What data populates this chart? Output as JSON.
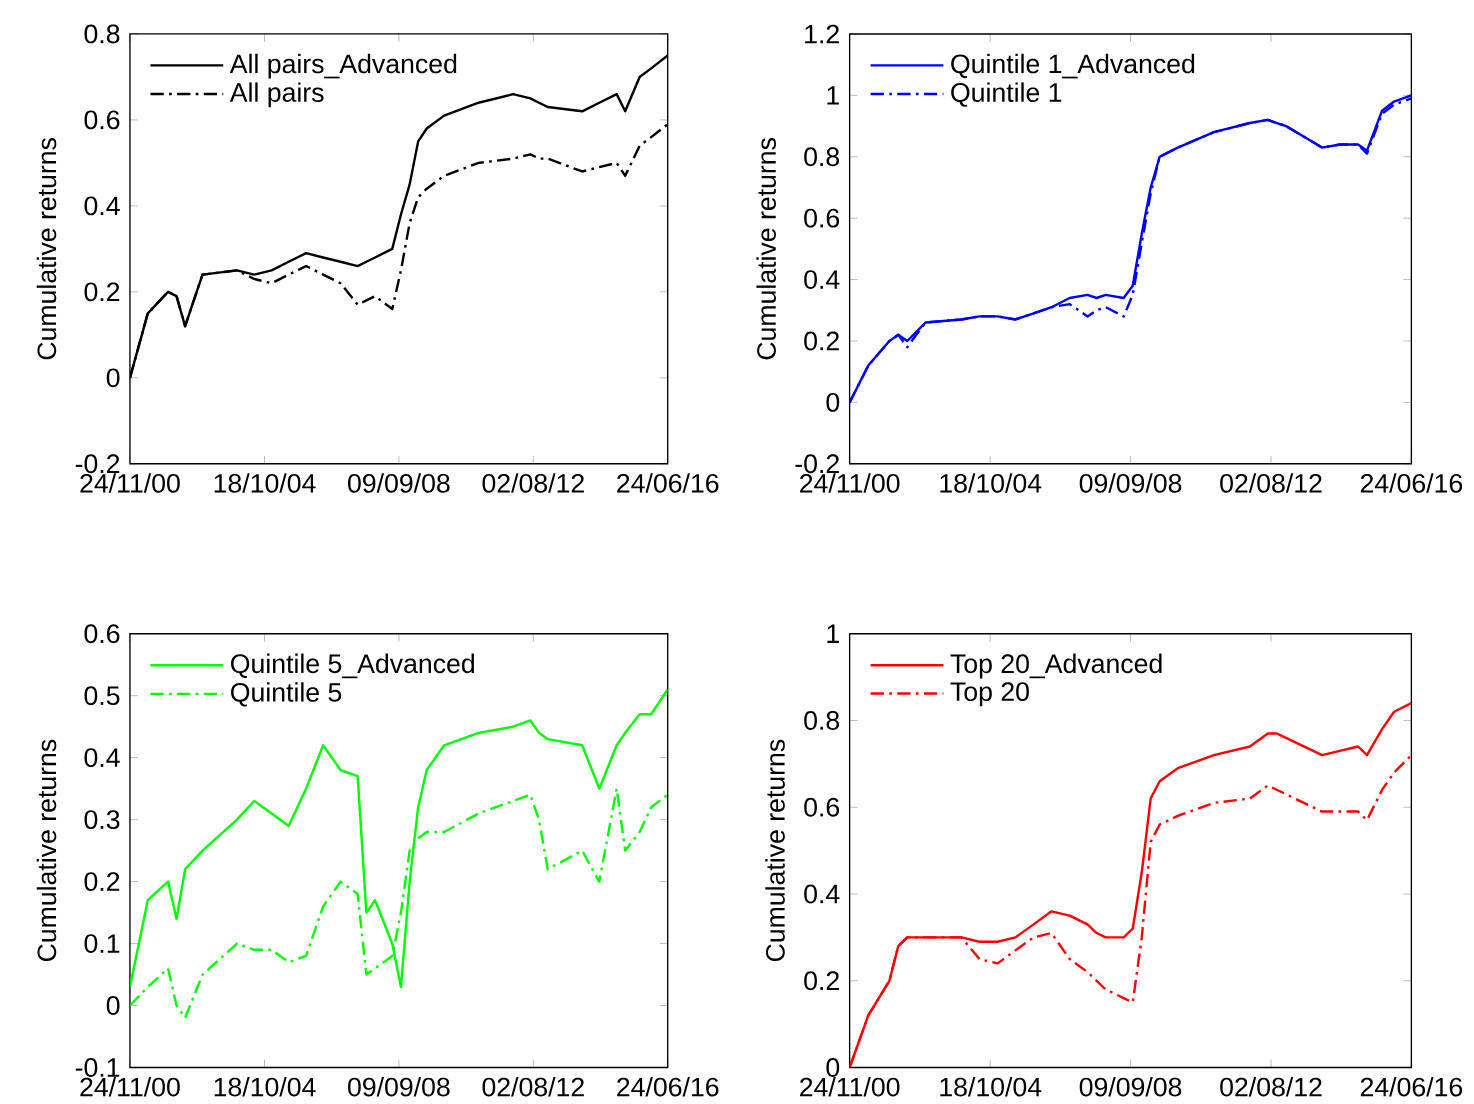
{
  "chart_data": [
    {
      "type": "line",
      "ylabel": "Cumulative returns",
      "legend": "top left",
      "x": [
        "2000-11-24",
        "2001-06",
        "2002-01",
        "2002-04",
        "2002-07",
        "2003-01",
        "2004-01",
        "2004-07",
        "2005-01",
        "2005-07",
        "2006-01",
        "2006-07",
        "2007-01",
        "2007-07",
        "2007-10",
        "2008-01",
        "2008-07",
        "2008-10",
        "2009-01",
        "2009-04",
        "2009-07",
        "2010-01",
        "2011-01",
        "2012-01",
        "2012-07",
        "2012-10",
        "2013-01",
        "2014-01",
        "2014-07",
        "2015-01",
        "2015-04",
        "2015-09",
        "2016-01",
        "2016-06-24"
      ],
      "xlim": [
        "2000-11-24",
        "2016-06-24"
      ],
      "xticks": [
        {
          "value": "2000-11-24",
          "label": "24/11/00"
        },
        {
          "value": "2004-10-18",
          "label": "18/10/04"
        },
        {
          "value": "2008-09-09",
          "label": "09/09/08"
        },
        {
          "value": "2012-08-02",
          "label": "02/08/12"
        },
        {
          "value": "2016-06-24",
          "label": "24/06/16"
        }
      ],
      "ylim": [
        -0.2,
        0.8
      ],
      "yticks": [
        -0.2,
        0,
        0.2,
        0.4,
        0.6,
        0.8
      ],
      "series": [
        {
          "name": "All pairs_Advanced",
          "color": "#000000",
          "line_style": "solid",
          "values": [
            0,
            0.15,
            0.2,
            0.19,
            0.12,
            0.24,
            0.25,
            0.24,
            0.25,
            0.27,
            0.29,
            0.28,
            0.27,
            0.26,
            0.27,
            0.28,
            0.3,
            0.38,
            0.45,
            0.55,
            0.58,
            0.61,
            0.64,
            0.66,
            0.65,
            0.64,
            0.63,
            0.62,
            0.64,
            0.66,
            0.62,
            0.7,
            0.72,
            0.75
          ]
        },
        {
          "name": "All pairs",
          "color": "#000000",
          "line_style": "dashed",
          "values": [
            0,
            0.15,
            0.2,
            0.19,
            0.12,
            0.24,
            0.25,
            0.23,
            0.22,
            0.24,
            0.26,
            0.24,
            0.22,
            0.17,
            0.18,
            0.19,
            0.16,
            0.25,
            0.36,
            0.42,
            0.44,
            0.47,
            0.5,
            0.51,
            0.52,
            0.51,
            0.51,
            0.48,
            0.49,
            0.5,
            0.47,
            0.54,
            0.56,
            0.59
          ]
        }
      ]
    },
    {
      "type": "line",
      "ylabel": "Cumulative returns",
      "legend": "top left",
      "x": [
        "2000-11-24",
        "2001-06",
        "2002-01",
        "2002-04",
        "2002-07",
        "2003-01",
        "2004-01",
        "2004-07",
        "2005-01",
        "2005-07",
        "2006-01",
        "2006-07",
        "2007-01",
        "2007-07",
        "2007-10",
        "2008-01",
        "2008-07",
        "2008-10",
        "2009-01",
        "2009-04",
        "2009-07",
        "2010-01",
        "2011-01",
        "2012-01",
        "2012-07",
        "2012-10",
        "2013-01",
        "2014-01",
        "2014-07",
        "2015-01",
        "2015-04",
        "2015-09",
        "2016-01",
        "2016-06-24"
      ],
      "xlim": [
        "2000-11-24",
        "2016-06-24"
      ],
      "xticks": [
        {
          "value": "2000-11-24",
          "label": "24/11/00"
        },
        {
          "value": "2004-10-18",
          "label": "18/10/04"
        },
        {
          "value": "2008-09-09",
          "label": "09/09/08"
        },
        {
          "value": "2012-08-02",
          "label": "02/08/12"
        },
        {
          "value": "2016-06-24",
          "label": "24/06/16"
        }
      ],
      "ylim": [
        -0.2,
        1.2
      ],
      "yticks": [
        -0.2,
        0,
        0.2,
        0.4,
        0.6,
        0.8,
        1,
        1.2
      ],
      "series": [
        {
          "name": "Quintile 1_Advanced",
          "color": "#0000ff",
          "line_style": "solid",
          "values": [
            0,
            0.12,
            0.2,
            0.22,
            0.2,
            0.26,
            0.27,
            0.28,
            0.28,
            0.27,
            0.29,
            0.31,
            0.34,
            0.35,
            0.34,
            0.35,
            0.34,
            0.38,
            0.55,
            0.7,
            0.8,
            0.83,
            0.88,
            0.91,
            0.92,
            0.91,
            0.9,
            0.83,
            0.84,
            0.84,
            0.82,
            0.95,
            0.98,
            1.0
          ]
        },
        {
          "name": "Quintile 1",
          "color": "#0000ff",
          "line_style": "dashed",
          "values": [
            0,
            0.12,
            0.2,
            0.22,
            0.18,
            0.26,
            0.27,
            0.28,
            0.28,
            0.27,
            0.29,
            0.31,
            0.32,
            0.28,
            0.3,
            0.31,
            0.28,
            0.35,
            0.52,
            0.68,
            0.8,
            0.83,
            0.88,
            0.91,
            0.92,
            0.91,
            0.9,
            0.83,
            0.84,
            0.84,
            0.81,
            0.94,
            0.97,
            0.99
          ]
        }
      ]
    },
    {
      "type": "line",
      "ylabel": "Cumulative returns",
      "legend": "top left",
      "x": [
        "2000-11-24",
        "2001-06",
        "2002-01",
        "2002-04",
        "2002-07",
        "2003-01",
        "2004-01",
        "2004-07",
        "2005-01",
        "2005-07",
        "2006-01",
        "2006-07",
        "2007-01",
        "2007-07",
        "2007-10",
        "2008-01",
        "2008-07",
        "2008-10",
        "2009-01",
        "2009-04",
        "2009-07",
        "2010-01",
        "2011-01",
        "2012-01",
        "2012-07",
        "2012-10",
        "2013-01",
        "2014-01",
        "2014-07",
        "2015-01",
        "2015-04",
        "2015-09",
        "2016-01",
        "2016-06-24"
      ],
      "xlim": [
        "2000-11-24",
        "2016-06-24"
      ],
      "xticks": [
        {
          "value": "2000-11-24",
          "label": "24/11/00"
        },
        {
          "value": "2004-10-18",
          "label": "18/10/04"
        },
        {
          "value": "2008-09-09",
          "label": "09/09/08"
        },
        {
          "value": "2012-08-02",
          "label": "02/08/12"
        },
        {
          "value": "2016-06-24",
          "label": "24/06/16"
        }
      ],
      "ylim": [
        -0.1,
        0.6
      ],
      "yticks": [
        -0.1,
        0,
        0.1,
        0.2,
        0.3,
        0.4,
        0.5,
        0.6
      ],
      "series": [
        {
          "name": "Quintile 5_Advanced",
          "color": "#00ff00",
          "line_style": "solid",
          "values": [
            0.03,
            0.17,
            0.2,
            0.14,
            0.22,
            0.25,
            0.3,
            0.33,
            0.31,
            0.29,
            0.35,
            0.42,
            0.38,
            0.37,
            0.15,
            0.17,
            0.1,
            0.03,
            0.2,
            0.32,
            0.38,
            0.42,
            0.44,
            0.45,
            0.46,
            0.44,
            0.43,
            0.42,
            0.35,
            0.42,
            0.44,
            0.47,
            0.47,
            0.51
          ]
        },
        {
          "name": "Quintile 5",
          "color": "#00ff00",
          "line_style": "dashed",
          "values": [
            0,
            0.03,
            0.06,
            0.0,
            -0.02,
            0.05,
            0.1,
            0.09,
            0.09,
            0.07,
            0.08,
            0.16,
            0.2,
            0.18,
            0.05,
            0.06,
            0.08,
            0.15,
            0.25,
            0.27,
            0.28,
            0.28,
            0.31,
            0.33,
            0.34,
            0.3,
            0.22,
            0.25,
            0.2,
            0.35,
            0.25,
            0.28,
            0.32,
            0.34
          ]
        }
      ]
    },
    {
      "type": "line",
      "ylabel": "Cumulative returns",
      "legend": "top left",
      "x": [
        "2000-11-24",
        "2001-06",
        "2002-01",
        "2002-04",
        "2002-07",
        "2003-01",
        "2004-01",
        "2004-07",
        "2005-01",
        "2005-07",
        "2006-01",
        "2006-07",
        "2007-01",
        "2007-07",
        "2007-10",
        "2008-01",
        "2008-07",
        "2008-10",
        "2009-01",
        "2009-04",
        "2009-07",
        "2010-01",
        "2011-01",
        "2012-01",
        "2012-07",
        "2012-10",
        "2013-01",
        "2014-01",
        "2014-07",
        "2015-01",
        "2015-04",
        "2015-09",
        "2016-01",
        "2016-06-24"
      ],
      "xlim": [
        "2000-11-24",
        "2016-06-24"
      ],
      "xticks": [
        {
          "value": "2000-11-24",
          "label": "24/11/00"
        },
        {
          "value": "2004-10-18",
          "label": "18/10/04"
        },
        {
          "value": "2008-09-09",
          "label": "09/09/08"
        },
        {
          "value": "2012-08-02",
          "label": "02/08/12"
        },
        {
          "value": "2016-06-24",
          "label": "24/06/16"
        }
      ],
      "ylim": [
        0,
        1
      ],
      "yticks": [
        0,
        0.2,
        0.4,
        0.6,
        0.8,
        1
      ],
      "series": [
        {
          "name": "Top 20_Advanced",
          "color": "#ff0000",
          "line_style": "solid",
          "values": [
            0,
            0.12,
            0.2,
            0.28,
            0.3,
            0.3,
            0.3,
            0.29,
            0.29,
            0.3,
            0.33,
            0.36,
            0.35,
            0.33,
            0.31,
            0.3,
            0.3,
            0.32,
            0.45,
            0.62,
            0.66,
            0.69,
            0.72,
            0.74,
            0.77,
            0.77,
            0.76,
            0.72,
            0.73,
            0.74,
            0.72,
            0.78,
            0.82,
            0.84
          ]
        },
        {
          "name": "Top 20",
          "color": "#ff0000",
          "line_style": "dashed",
          "values": [
            0,
            0.12,
            0.2,
            0.28,
            0.3,
            0.3,
            0.3,
            0.25,
            0.24,
            0.27,
            0.3,
            0.31,
            0.25,
            0.22,
            0.2,
            0.18,
            0.16,
            0.15,
            0.3,
            0.52,
            0.56,
            0.58,
            0.61,
            0.62,
            0.65,
            0.64,
            0.63,
            0.59,
            0.59,
            0.59,
            0.57,
            0.64,
            0.68,
            0.72
          ]
        }
      ]
    }
  ]
}
